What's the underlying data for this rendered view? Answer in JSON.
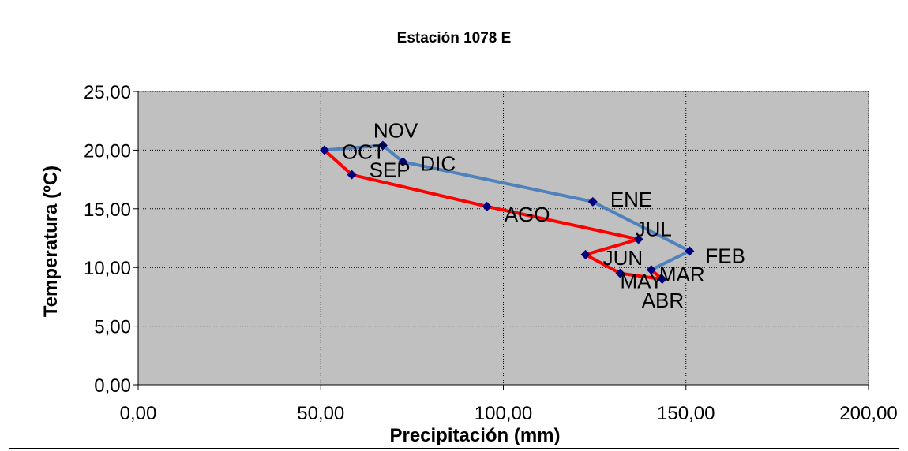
{
  "chart_data": {
    "type": "line",
    "title": "Estación 1078 E",
    "xlabel": "Precipitación (mm)",
    "ylabel": "Temperatura (ºC)",
    "xlim": [
      0,
      200
    ],
    "ylim": [
      0,
      25
    ],
    "x_ticks": [
      "0,00",
      "50,00",
      "100,00",
      "150,00",
      "200,00"
    ],
    "y_ticks": [
      "0,00",
      "5,00",
      "10,00",
      "15,00",
      "20,00",
      "25,00"
    ],
    "grid": true,
    "plot_background": "#c0c0c0",
    "marker_color": "#000080",
    "series": [
      {
        "color": "#4f81bd",
        "points": [
          {
            "label": "OCT",
            "x": 51,
            "y": 20.0
          },
          {
            "label": "NOV",
            "x": 67,
            "y": 20.4
          },
          {
            "label": "DIC",
            "x": 72.5,
            "y": 19.0
          },
          {
            "label": "ENE",
            "x": 124.5,
            "y": 15.6
          },
          {
            "label": "FEB",
            "x": 151,
            "y": 11.4
          },
          {
            "label": "MAR",
            "x": 140.5,
            "y": 9.8
          }
        ]
      },
      {
        "color": "#ff0000",
        "points": [
          {
            "label": "MAR",
            "x": 140.5,
            "y": 9.8
          },
          {
            "label": "ABR",
            "x": 143.5,
            "y": 9.0
          },
          {
            "label": "MAY",
            "x": 132,
            "y": 9.5
          },
          {
            "label": "JUN",
            "x": 122.5,
            "y": 11.1
          },
          {
            "label": "JUL",
            "x": 137,
            "y": 12.4
          },
          {
            "label": "AGO",
            "x": 95.5,
            "y": 15.2
          },
          {
            "label": "SEP",
            "x": 58.5,
            "y": 17.9
          },
          {
            "label": "OCT",
            "x": 51,
            "y": 20.0
          }
        ]
      }
    ],
    "point_labels": [
      {
        "text": "NOV",
        "x": 67,
        "y": 20.4
      },
      {
        "text": "OCT",
        "x": 51,
        "y": 20.0
      },
      {
        "text": "DIC",
        "x": 72.5,
        "y": 19.0
      },
      {
        "text": "SEP",
        "x": 58.5,
        "y": 17.9
      },
      {
        "text": "ENE",
        "x": 124.5,
        "y": 15.6
      },
      {
        "text": "AGO",
        "x": 95.5,
        "y": 15.2
      },
      {
        "text": "JUL",
        "x": 137,
        "y": 12.4
      },
      {
        "text": "FEB",
        "x": 151,
        "y": 11.4
      },
      {
        "text": "JUN",
        "x": 122.5,
        "y": 11.1
      },
      {
        "text": "MAR",
        "x": 140.5,
        "y": 9.8
      },
      {
        "text": "MAY",
        "x": 132,
        "y": 9.5
      },
      {
        "text": "ABR",
        "x": 143.5,
        "y": 9.0
      }
    ]
  }
}
